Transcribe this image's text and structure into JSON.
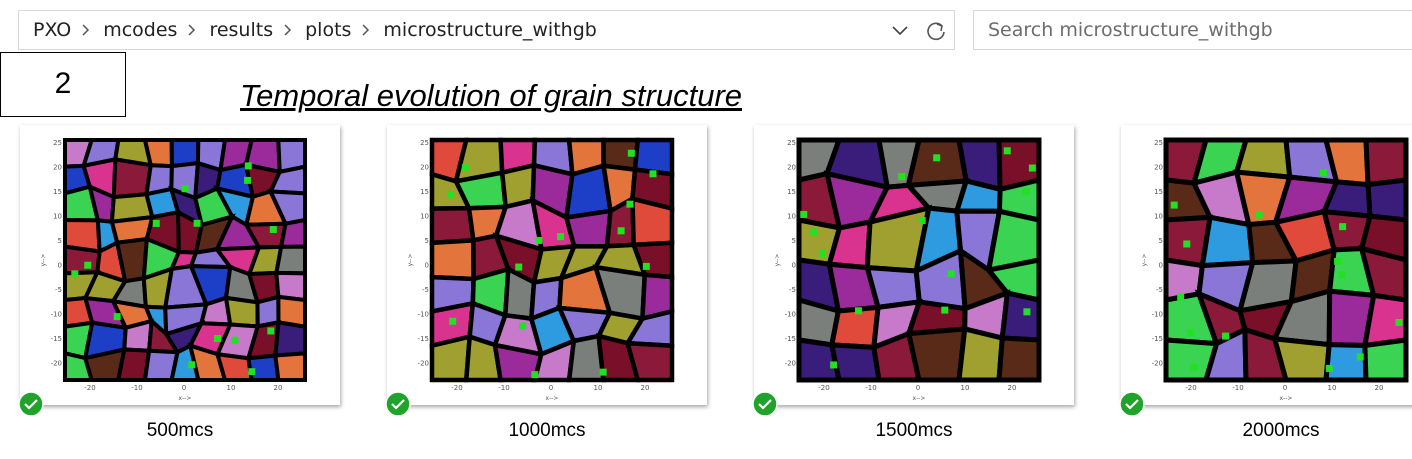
{
  "breadcrumb": [
    "PXO",
    "mcodes",
    "results",
    "plots",
    "microstructure_withgb"
  ],
  "search_placeholder": "Search microstructure_withgb",
  "box_label": "2",
  "title": "Temporal evolution of grain structure",
  "thumbnail_axes": {
    "xticks": [
      "-20",
      "-10",
      "0",
      "10",
      "20"
    ],
    "yticks": [
      "25",
      "20",
      "15",
      "10",
      "5",
      "0",
      "-5",
      "-10",
      "-15",
      "-20"
    ],
    "xlabel": "x-->",
    "ylabel": "y-->"
  },
  "files": [
    {
      "name": "500mcs"
    },
    {
      "name": "1000mcs"
    },
    {
      "name": "1500mcs"
    },
    {
      "name": "2000mcs"
    }
  ]
}
